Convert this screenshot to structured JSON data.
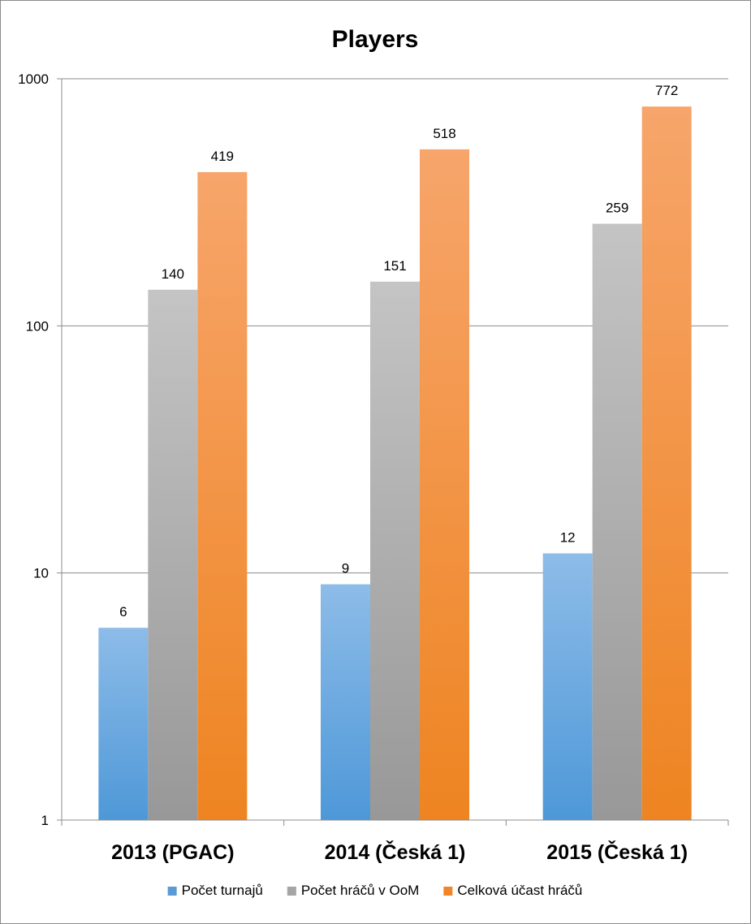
{
  "chart_data": {
    "type": "bar",
    "title": "Players",
    "xlabel": "",
    "ylabel": "",
    "y_scale": "log",
    "ylim": [
      1,
      1000
    ],
    "y_ticks": [
      "1",
      "10",
      "100",
      "1000"
    ],
    "grid": true,
    "legend_position": "bottom",
    "categories": [
      "2013 (PGAC)",
      "2014 (Česká 1)",
      "2015 (Česká 1)"
    ],
    "series": [
      {
        "name": "Počet turnajů",
        "values": [
          6,
          9,
          12
        ],
        "color": "#5b9bd5"
      },
      {
        "name": "Počet hráčů v OoM",
        "values": [
          140,
          151,
          259
        ],
        "color": "#a5a5a5"
      },
      {
        "name": "Celková účast hráčů",
        "values": [
          419,
          518,
          772
        ],
        "color": "#f0862a"
      }
    ]
  }
}
